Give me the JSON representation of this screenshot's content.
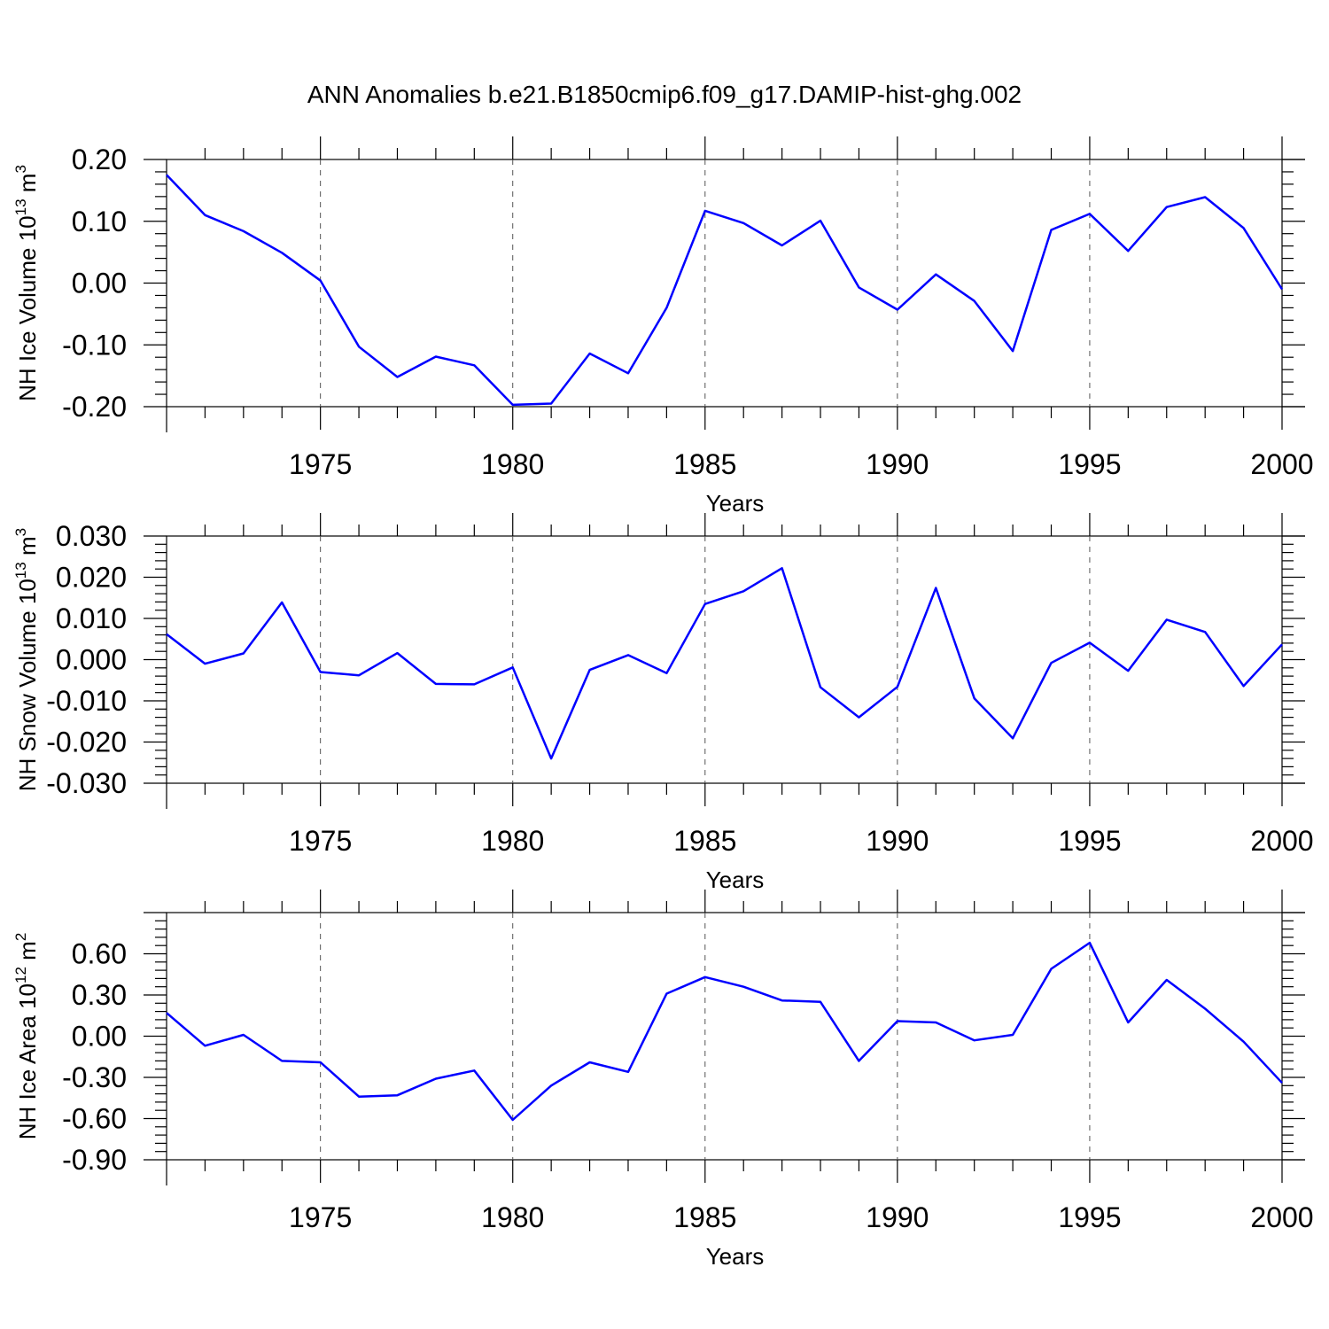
{
  "title": "ANN Anomalies b.e21.B1850cmip6.f09_g17.DAMIP-hist-ghg.002",
  "line_color": "#0000ff",
  "chart_data": [
    {
      "type": "line",
      "title": "ANN Anomalies b.e21.B1850cmip6.f09_g17.DAMIP-hist-ghg.002",
      "xlabel": "Years",
      "ylabel": {
        "prefix": "NH Ice Volume 10",
        "exponent": "13",
        "unit": " m",
        "unit_exponent": "3"
      },
      "xlim": [
        1971,
        2000
      ],
      "ylim": [
        -0.2,
        0.2
      ],
      "xticks": [
        1975,
        1980,
        1985,
        1990,
        1995,
        2000
      ],
      "yticks": [
        -0.2,
        -0.1,
        0.0,
        0.1,
        0.2
      ],
      "ytick_labels": [
        "-0.20",
        "-0.10",
        "0.00",
        "0.10",
        "0.20"
      ],
      "grid": "vertical dashed at major x ticks",
      "x": [
        1971,
        1972,
        1973,
        1974,
        1975,
        1976,
        1977,
        1978,
        1979,
        1980,
        1981,
        1982,
        1983,
        1984,
        1985,
        1986,
        1987,
        1988,
        1989,
        1990,
        1991,
        1992,
        1993,
        1994,
        1995,
        1996,
        1997,
        1998,
        1999,
        2000
      ],
      "series": [
        {
          "values": [
            0.175,
            0.11,
            0.084,
            0.049,
            0.004,
            -0.103,
            -0.152,
            -0.119,
            -0.133,
            -0.197,
            -0.195,
            -0.114,
            -0.146,
            -0.04,
            0.117,
            0.097,
            0.061,
            0.101,
            -0.007,
            -0.043,
            0.014,
            -0.029,
            -0.11,
            0.086,
            0.112,
            0.052,
            0.123,
            0.139,
            0.089,
            -0.01
          ]
        }
      ]
    },
    {
      "type": "line",
      "xlabel": "Years",
      "ylabel": {
        "prefix": "NH Snow Volume 10",
        "exponent": "13",
        "unit": " m",
        "unit_exponent": "3"
      },
      "xlim": [
        1971,
        2000
      ],
      "ylim": [
        -0.03,
        0.03
      ],
      "xticks": [
        1975,
        1980,
        1985,
        1990,
        1995,
        2000
      ],
      "yticks": [
        -0.03,
        -0.02,
        -0.01,
        0.0,
        0.01,
        0.02,
        0.03
      ],
      "ytick_labels": [
        "-0.030",
        "-0.020",
        "-0.010",
        "0.000",
        "0.010",
        "0.020",
        "0.030"
      ],
      "grid": "vertical dashed at major x ticks",
      "x": [
        1971,
        1972,
        1973,
        1974,
        1975,
        1976,
        1977,
        1978,
        1979,
        1980,
        1981,
        1982,
        1983,
        1984,
        1985,
        1986,
        1987,
        1988,
        1989,
        1990,
        1991,
        1992,
        1993,
        1994,
        1995,
        1996,
        1997,
        1998,
        1999,
        2000
      ],
      "series": [
        {
          "values": [
            0.0062,
            -0.001,
            0.0015,
            0.0139,
            -0.003,
            -0.0038,
            0.0016,
            -0.0059,
            -0.006,
            -0.0019,
            -0.024,
            -0.0025,
            0.0011,
            -0.0033,
            0.0135,
            0.0166,
            0.0222,
            -0.0067,
            -0.014,
            -0.0066,
            0.0174,
            -0.0094,
            -0.0191,
            -0.0008,
            0.0041,
            -0.0027,
            0.0097,
            0.0067,
            -0.0064,
            0.0037
          ]
        }
      ]
    },
    {
      "type": "line",
      "xlabel": "Years",
      "ylabel": {
        "prefix": "NH Ice Area 10",
        "exponent": "12",
        "unit": " m",
        "unit_exponent": "2"
      },
      "xlim": [
        1971,
        2000
      ],
      "ylim": [
        -0.9,
        0.9
      ],
      "xticks": [
        1975,
        1980,
        1985,
        1990,
        1995,
        2000
      ],
      "yticks": [
        -0.9,
        -0.6,
        -0.3,
        0.0,
        0.3,
        0.6
      ],
      "ytick_labels": [
        "-0.90",
        "-0.60",
        "-0.30",
        "0.00",
        "0.30",
        "0.60"
      ],
      "grid": "vertical dashed at major x ticks",
      "x": [
        1971,
        1972,
        1973,
        1974,
        1975,
        1976,
        1977,
        1978,
        1979,
        1980,
        1981,
        1982,
        1983,
        1984,
        1985,
        1986,
        1987,
        1988,
        1989,
        1990,
        1991,
        1992,
        1993,
        1994,
        1995,
        1996,
        1997,
        1998,
        1999,
        2000
      ],
      "series": [
        {
          "values": [
            0.17,
            -0.07,
            0.01,
            -0.18,
            -0.19,
            -0.44,
            -0.43,
            -0.31,
            -0.25,
            -0.61,
            -0.36,
            -0.19,
            -0.26,
            0.31,
            0.43,
            0.36,
            0.26,
            0.25,
            -0.18,
            0.11,
            0.1,
            -0.03,
            0.01,
            0.49,
            0.68,
            0.1,
            0.41,
            0.2,
            -0.04,
            -0.34
          ]
        }
      ]
    }
  ]
}
